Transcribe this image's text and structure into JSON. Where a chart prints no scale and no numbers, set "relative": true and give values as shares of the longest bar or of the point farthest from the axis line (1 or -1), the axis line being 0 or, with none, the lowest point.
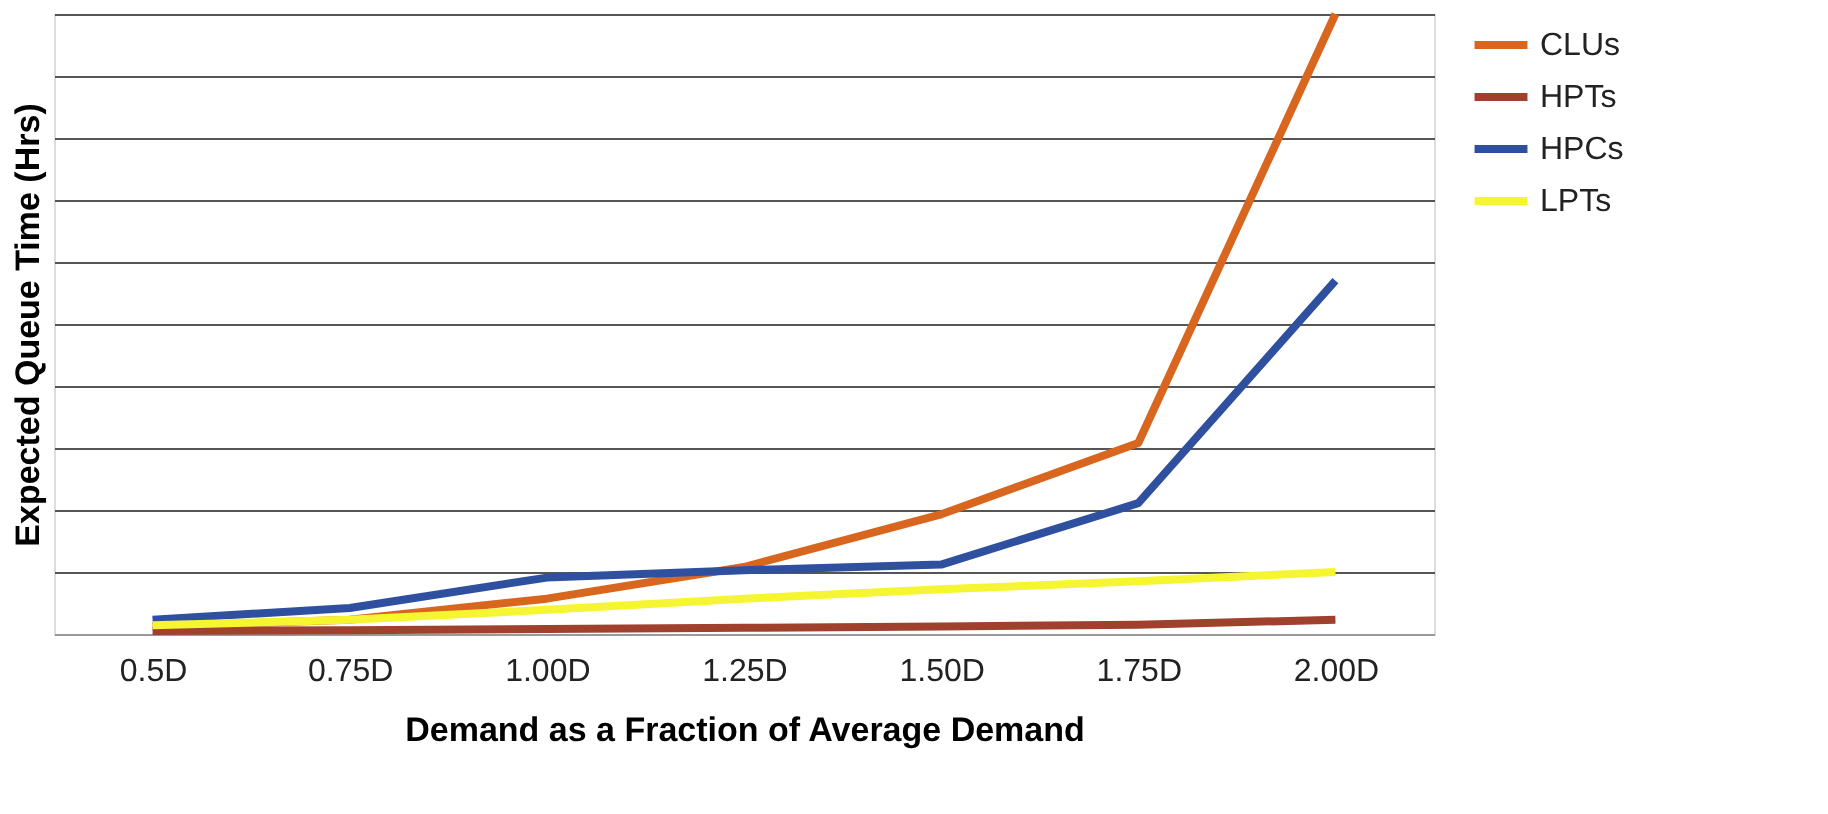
{
  "chart_data": {
    "type": "line",
    "relative": true,
    "xlabel": "Demand as a Fraction of Average Demand",
    "ylabel": "Expected Queue Time (Hrs)",
    "categories": [
      "0.5D",
      "0.75D",
      "1.00D",
      "1.25D",
      "1.50D",
      "1.75D",
      "2.00D"
    ],
    "series": [
      {
        "name": "CLUs",
        "color": "#d9661f",
        "values": [
          0.012,
          0.023,
          0.057,
          0.108,
          0.193,
          0.308,
          1
        ]
      },
      {
        "name": "HPTs",
        "color": "#a0412e",
        "values": [
          0.005,
          0.006,
          0.008,
          0.01,
          0.012,
          0.015,
          0.023
        ]
      },
      {
        "name": "HPCs",
        "color": "#2f4f9f",
        "values": [
          0.023,
          0.042,
          0.091,
          0.103,
          0.112,
          0.211,
          0.57
        ]
      },
      {
        "name": "LPTs",
        "color": "#f5f532",
        "values": [
          0.014,
          0.023,
          0.039,
          0.057,
          0.072,
          0.085,
          0.1
        ]
      }
    ],
    "grid": "y",
    "legend": "right",
    "marker": "none",
    "line_style": "solid"
  }
}
